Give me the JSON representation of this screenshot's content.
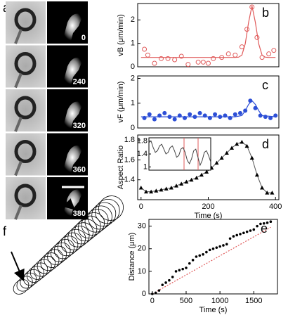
{
  "panel_labels": {
    "a": "a",
    "f": "f"
  },
  "frames": [
    0,
    240,
    320,
    360,
    380
  ],
  "chart_data": [
    {
      "type": "scatter",
      "label": "b",
      "ylabel": "vB (μm/min)",
      "marker": "circle-open",
      "color": "#e05a5a",
      "x": [
        10,
        20,
        40,
        60,
        80,
        100,
        120,
        140,
        170,
        185,
        200,
        215,
        240,
        260,
        280,
        300,
        315,
        330,
        345,
        360,
        380,
        395
      ],
      "values": [
        0.75,
        0.5,
        0.15,
        0.35,
        0.35,
        0.3,
        0.45,
        0.1,
        0.2,
        0.2,
        0.15,
        0.35,
        0.4,
        0.55,
        0.5,
        0.85,
        1.6,
        2.55,
        1.25,
        0.4,
        0.55,
        0.7
      ],
      "fit": {
        "x": [
          0,
          260,
          280,
          290,
          300,
          310,
          320,
          330,
          340,
          350,
          360,
          370,
          380,
          400
        ],
        "values": [
          0.4,
          0.4,
          0.4,
          0.41,
          0.5,
          0.98,
          1.9,
          2.6,
          1.9,
          0.98,
          0.5,
          0.41,
          0.4,
          0.4
        ]
      },
      "xlim": [
        -10,
        410
      ],
      "ylim": [
        0,
        2.7
      ],
      "yticks": [
        0,
        1,
        2
      ]
    },
    {
      "type": "scatter",
      "label": "c",
      "ylabel": "vF (μm/min)",
      "marker": "circle",
      "color": "#2d4fd6",
      "x": [
        10,
        25,
        40,
        55,
        70,
        85,
        100,
        115,
        130,
        145,
        160,
        175,
        190,
        205,
        220,
        235,
        250,
        265,
        280,
        295,
        310,
        325,
        340,
        355,
        370,
        385,
        400
      ],
      "values": [
        0.4,
        0.55,
        0.35,
        0.5,
        0.6,
        0.45,
        0.35,
        0.5,
        0.4,
        0.55,
        0.45,
        0.6,
        0.5,
        0.4,
        0.55,
        0.45,
        0.5,
        0.4,
        0.55,
        0.6,
        0.7,
        1.1,
        0.8,
        0.5,
        0.45,
        0.4,
        0.5
      ],
      "fit": {
        "x": [
          0,
          280,
          300,
          310,
          320,
          330,
          340,
          350,
          360,
          400
        ],
        "values": [
          0.45,
          0.45,
          0.5,
          0.7,
          0.95,
          1.1,
          0.95,
          0.7,
          0.5,
          0.45
        ]
      },
      "xlim": [
        -10,
        410
      ],
      "ylim": [
        0,
        2.1
      ],
      "yticks": [
        0,
        1,
        2
      ]
    },
    {
      "type": "scatter",
      "label": "d",
      "ylabel": "Aspect Ratio",
      "xlabel": "Time (s)",
      "marker": "triangle",
      "color": "#000000",
      "line": true,
      "x": [
        0,
        15,
        30,
        45,
        60,
        75,
        90,
        105,
        120,
        135,
        150,
        165,
        180,
        195,
        210,
        225,
        240,
        255,
        270,
        285,
        300,
        315,
        330,
        345,
        360,
        375,
        390
      ],
      "values": [
        1.32,
        1.28,
        1.28,
        1.29,
        1.3,
        1.31,
        1.32,
        1.34,
        1.36,
        1.38,
        1.4,
        1.42,
        1.45,
        1.48,
        1.52,
        1.57,
        1.62,
        1.67,
        1.72,
        1.76,
        1.78,
        1.74,
        1.62,
        1.45,
        1.32,
        1.27,
        1.27
      ],
      "xlim": [
        -10,
        410
      ],
      "ylim": [
        1.2,
        1.85
      ],
      "yticks": [
        1.4,
        1.6,
        1.8
      ],
      "xticks": [
        0,
        200,
        400
      ],
      "inset": {
        "values": [
          1.75,
          1.8,
          1.6,
          1.45,
          1.5,
          1.65,
          1.7,
          1.55,
          1.4,
          1.45,
          1.6,
          1.65,
          1.5,
          1.3,
          1.35,
          1.55,
          1.6,
          1.45,
          1.2,
          1.1,
          1.25,
          1.5,
          1.55,
          1.3,
          1.05,
          1.2,
          1.45,
          1.5,
          1.35,
          1.15
        ],
        "ylim": [
          0.9,
          1.9
        ],
        "yticks": [
          1,
          1.4,
          1.8
        ]
      }
    },
    {
      "type": "scatter",
      "label": "e",
      "ylabel": "Distance (μm)",
      "xlabel": "Time (s)",
      "marker": "dot",
      "color": "#000000",
      "x": [
        0,
        50,
        100,
        150,
        200,
        250,
        300,
        350,
        400,
        450,
        500,
        550,
        600,
        650,
        700,
        750,
        800,
        850,
        900,
        950,
        1000,
        1050,
        1100,
        1150,
        1200,
        1250,
        1300,
        1350,
        1400,
        1450,
        1500,
        1550,
        1600,
        1650,
        1700,
        1750
      ],
      "values": [
        0,
        0.5,
        1.5,
        4,
        5,
        6,
        7.5,
        10,
        10.5,
        11,
        11.5,
        13.5,
        15,
        16.5,
        17,
        17.5,
        18.5,
        19.5,
        20,
        20.5,
        21,
        21.5,
        22,
        24.5,
        25.5,
        26,
        26.5,
        27,
        27.5,
        28,
        28.5,
        30,
        31,
        31.2,
        31.5,
        32
      ],
      "fit": {
        "x": [
          0,
          1750
        ],
        "values": [
          0,
          29.5
        ]
      },
      "fit_color": "#e05a5a",
      "xlim": [
        -50,
        1850
      ],
      "ylim": [
        0,
        33
      ],
      "yticks": [
        0,
        10,
        20,
        30
      ],
      "xticks": [
        0,
        500,
        1000,
        1500
      ]
    }
  ]
}
